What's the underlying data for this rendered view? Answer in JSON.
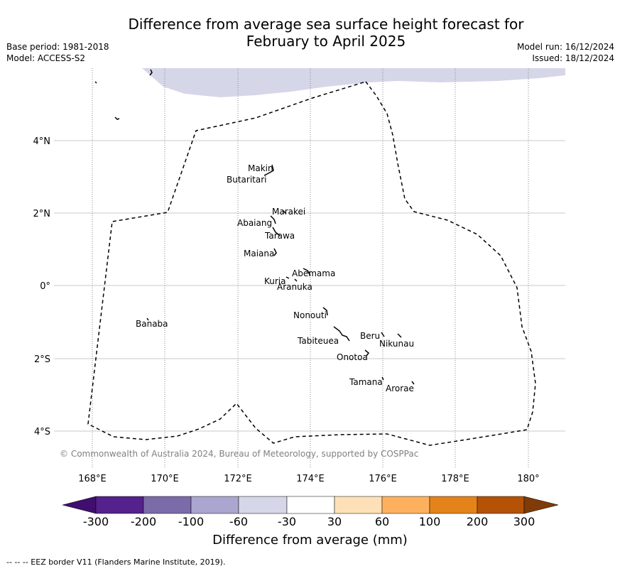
{
  "title_line1": "Difference from average sea surface height forecast for",
  "title_line2": "February to April 2025",
  "base_period": "Base period: 1981-2018",
  "model": "Model: ACCESS-S2",
  "model_run": "Model run: 16/12/2024",
  "issued": "Issued: 18/12/2024",
  "lat_labels": [
    "4°N",
    "2°N",
    "0°",
    "2°S",
    "4°S"
  ],
  "lon_labels": [
    "168°E",
    "170°E",
    "172°E",
    "174°E",
    "176°E",
    "178°E",
    "180°"
  ],
  "islands": [
    "Makin",
    "Butaritari",
    "Marakei",
    "Abaiang",
    "Tarawa",
    "Maiana",
    "Abemama",
    "Kuria",
    "Aranuka",
    "Nonouti",
    "Banaba",
    "Beru",
    "Nikunau",
    "Tabiteuea",
    "Onotoa",
    "Tamana",
    "Arorae"
  ],
  "credit": "© Commonwealth of Australia 2024, Bureau of Meteorology, supported by COSPPac",
  "colorbar": {
    "ticks": [
      "-300",
      "-200",
      "-100",
      "-60",
      "-30",
      "30",
      "60",
      "100",
      "200",
      "300"
    ],
    "colors": [
      "#3f0e6e",
      "#55218c",
      "#7b6ba8",
      "#aba6cf",
      "#d6d6e9",
      "#ffffff",
      "#fde0b6",
      "#fdb15f",
      "#e4831a",
      "#b55206",
      "#7f3b08"
    ],
    "title": "Difference from average (mm)"
  },
  "footer": "--  --  -- EEZ border V11 (Flanders Marine Institute, 2019)."
}
